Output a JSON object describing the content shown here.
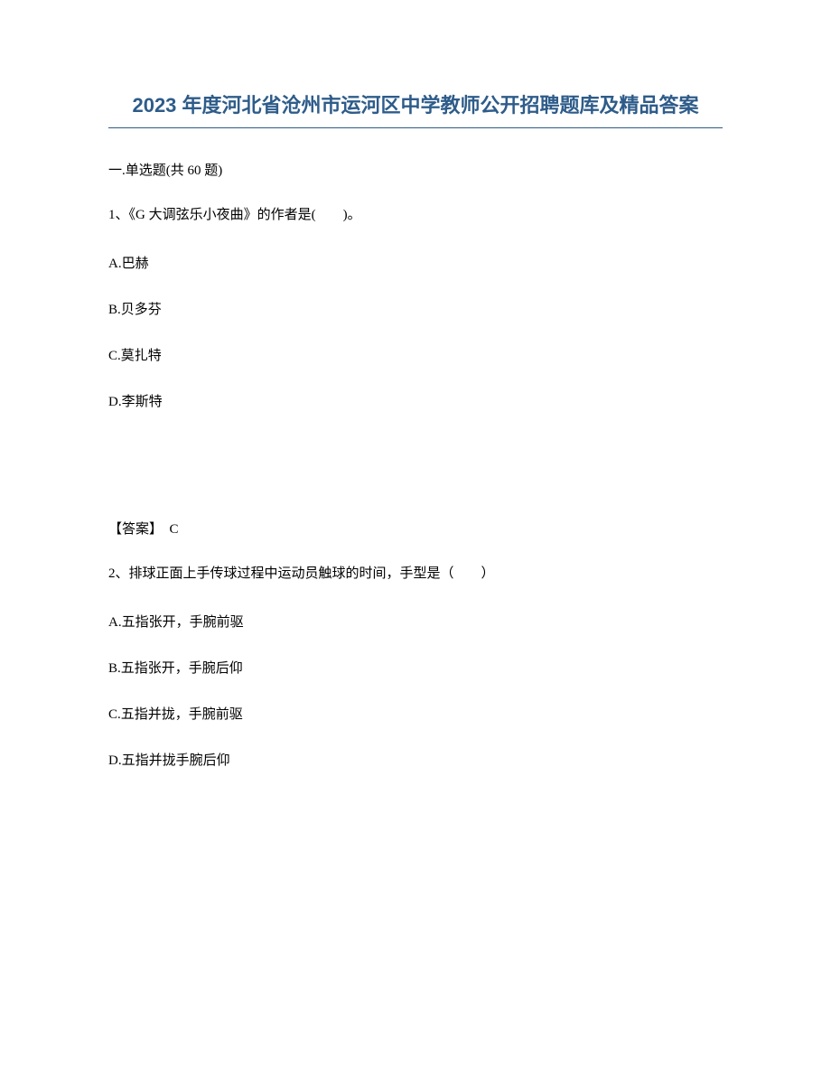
{
  "title": "2023 年度河北省沧州市运河区中学教师公开招聘题库及精品答案",
  "section_header": "一.单选题(共 60 题)",
  "question1": {
    "number": "1、",
    "text": "《G 大调弦乐小夜曲》的作者是(　　)。",
    "options": {
      "a": "A.巴赫",
      "b": "B.贝多芬",
      "c": "C.莫扎特",
      "d": "D.李斯特"
    },
    "answer_label": "【答案】",
    "answer_value": "C"
  },
  "question2": {
    "number": "2、",
    "text": "排球正面上手传球过程中运动员触球的时间，手型是（　　）",
    "options": {
      "a": "A.五指张开，手腕前驱",
      "b": "B.五指张开，手腕后仰",
      "c": "C.五指并拢，手腕前驱",
      "d": "D.五指并拢手腕后仰"
    }
  },
  "colors": {
    "title_color": "#2e5c8a",
    "text_color": "#000000",
    "background": "#ffffff"
  },
  "typography": {
    "title_fontsize": 22,
    "body_fontsize": 15,
    "title_font": "Microsoft YaHei",
    "body_font": "SimSun"
  }
}
